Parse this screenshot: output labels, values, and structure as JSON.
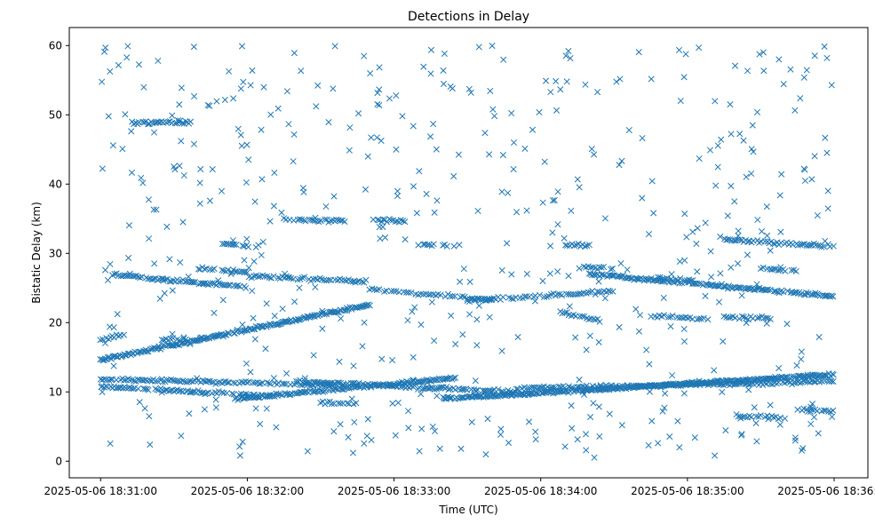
{
  "chart_data": {
    "type": "scatter",
    "title": "Detections in Delay",
    "xlabel": "Time (UTC)",
    "ylabel": "Bistatic Delay (km)",
    "marker": "x",
    "color": "#1f77b4",
    "xlim_seconds": [
      -12.8,
      313.8
    ],
    "ylim": [
      -2.4,
      62.6
    ],
    "x_tick_seconds": [
      0,
      60,
      120,
      180,
      240,
      300
    ],
    "x_tick_labels": [
      "2025-05-06 18:31:00",
      "2025-05-06 18:32:00",
      "2025-05-06 18:33:00",
      "2025-05-06 18:34:00",
      "2025-05-06 18:35:00",
      "2025-05-06 18:36:00"
    ],
    "y_ticks": [
      0,
      10,
      20,
      30,
      40,
      50,
      60
    ],
    "y_tick_labels": [
      "0",
      "10",
      "20",
      "30",
      "40",
      "50",
      "60"
    ],
    "x_start": "2025-05-06 18:31:00",
    "x_end_seconds": 300,
    "tracks": [
      {
        "t0": 0,
        "t1": 110,
        "y0": 14.6,
        "y1": 22.6,
        "step": 0.5
      },
      {
        "t0": 0,
        "t1": 95,
        "y0": 11.8,
        "y1": 11.0,
        "step": 0.8
      },
      {
        "t0": 0,
        "t1": 70,
        "y0": 10.8,
        "y1": 9.4,
        "step": 0.7
      },
      {
        "t0": 5,
        "t1": 60,
        "y0": 26.9,
        "y1": 25.1,
        "step": 0.8
      },
      {
        "t0": 60,
        "t1": 110,
        "y0": 26.7,
        "y1": 25.9,
        "step": 0.9
      },
      {
        "t0": 110,
        "t1": 160,
        "y0": 24.8,
        "y1": 23.3,
        "step": 1.0
      },
      {
        "t0": 55,
        "t1": 145,
        "y0": 9.0,
        "y1": 12.0,
        "step": 0.6
      },
      {
        "t0": 80,
        "t1": 170,
        "y0": 11.5,
        "y1": 10.0,
        "step": 0.7
      },
      {
        "t0": 140,
        "t1": 300,
        "y0": 9.0,
        "y1": 12.5,
        "step": 0.45
      },
      {
        "t0": 170,
        "t1": 300,
        "y0": 10.5,
        "y1": 11.5,
        "step": 0.8
      },
      {
        "t0": 150,
        "t1": 210,
        "y0": 23.2,
        "y1": 24.5,
        "step": 0.9
      },
      {
        "t0": 200,
        "t1": 300,
        "y0": 27.0,
        "y1": 23.8,
        "step": 0.6
      },
      {
        "t0": 255,
        "t1": 300,
        "y0": 32.0,
        "y1": 31.0,
        "step": 0.8
      },
      {
        "t0": 13,
        "t1": 37,
        "y0": 48.9,
        "y1": 48.9,
        "step": 0.7
      },
      {
        "t0": 75,
        "t1": 100,
        "y0": 34.9,
        "y1": 34.7,
        "step": 0.8
      },
      {
        "t0": 110,
        "t1": 125,
        "y0": 34.8,
        "y1": 34.7,
        "step": 0.8
      },
      {
        "t0": 50,
        "t1": 65,
        "y0": 31.4,
        "y1": 31.0,
        "step": 0.8
      },
      {
        "t0": 40,
        "t1": 60,
        "y0": 27.8,
        "y1": 27.3,
        "step": 0.8
      },
      {
        "t0": 130,
        "t1": 142,
        "y0": 31.2,
        "y1": 31.2,
        "step": 0.9
      },
      {
        "t0": 190,
        "t1": 200,
        "y0": 31.2,
        "y1": 31.2,
        "step": 0.9
      },
      {
        "t0": 195,
        "t1": 210,
        "y0": 28.0,
        "y1": 27.8,
        "step": 0.9
      },
      {
        "t0": 188,
        "t1": 205,
        "y0": 21.5,
        "y1": 20.3,
        "step": 0.9
      },
      {
        "t0": 225,
        "t1": 250,
        "y0": 21.0,
        "y1": 20.4,
        "step": 0.9
      },
      {
        "t0": 270,
        "t1": 285,
        "y0": 27.8,
        "y1": 27.5,
        "step": 0.9
      },
      {
        "t0": 260,
        "t1": 280,
        "y0": 6.5,
        "y1": 6.3,
        "step": 0.9
      },
      {
        "t0": 285,
        "t1": 300,
        "y0": 7.5,
        "y1": 7.2,
        "step": 0.9
      },
      {
        "t0": 90,
        "t1": 105,
        "y0": 8.5,
        "y1": 8.2,
        "step": 0.9
      },
      {
        "t0": 0,
        "t1": 10,
        "y0": 17.5,
        "y1": 18.3,
        "step": 0.8
      },
      {
        "t0": 25,
        "t1": 35,
        "y0": 17.6,
        "y1": 17.6,
        "step": 0.9
      },
      {
        "t0": 228,
        "t1": 243,
        "y0": 26.4,
        "y1": 26.1,
        "step": 0.9
      },
      {
        "t0": 255,
        "t1": 275,
        "y0": 20.8,
        "y1": 20.6,
        "step": 0.9
      }
    ],
    "noise_points": 520,
    "noise_seed": 20250506
  }
}
